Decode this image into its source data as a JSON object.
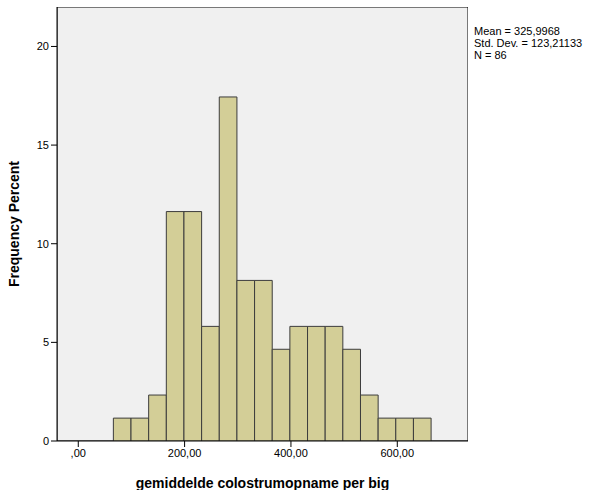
{
  "chart_data": {
    "type": "histogram",
    "x_label": "gemiddelde colostrumopname per big",
    "y_label": "Frequency Percent",
    "annotations": [
      "Mean = 325,9968",
      "Std. Dev. = 123,21133",
      "N = 86"
    ],
    "bins": [
      66,
      99.2,
      132.4,
      165.6,
      198.8,
      232,
      265.2,
      298.4,
      331.6,
      364.8,
      398,
      431.2,
      464.4,
      497.6,
      530.8,
      564,
      597.2,
      630.4,
      663.6
    ],
    "values": [
      1.16,
      1.16,
      2.33,
      11.63,
      11.63,
      5.81,
      17.44,
      8.14,
      8.14,
      4.65,
      5.81,
      5.81,
      5.81,
      4.65,
      2.33,
      1.16,
      1.16,
      1.16
    ],
    "color": "#d3ce97",
    "xlim": [
      -40,
      733
    ],
    "xticks": [
      {
        "value": 0,
        "label": ",00"
      },
      {
        "value": 200,
        "label": "200,00"
      },
      {
        "value": 400,
        "label": "400,00"
      },
      {
        "value": 600,
        "label": "600,00"
      }
    ],
    "ylim": [
      0,
      22
    ],
    "yticks": [
      0,
      5,
      10,
      15,
      20
    ],
    "grid": false
  }
}
